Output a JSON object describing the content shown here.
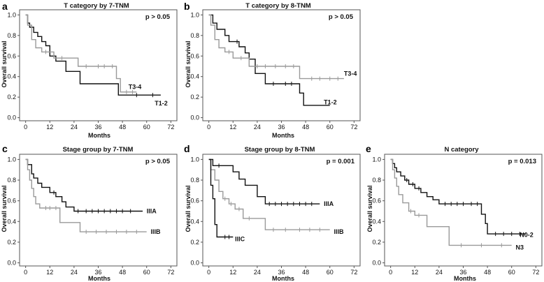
{
  "colors": {
    "black_series": "#111111",
    "gray_series": "#9a9a9a",
    "frame": "#555555"
  },
  "chart_data": [
    {
      "type": "line",
      "panel_label": "a",
      "title": "T category by 7-TNM",
      "p_value": "p > 0.05",
      "xlabel": "Months",
      "ylabel": "Overall survival",
      "xlim": [
        -3,
        75
      ],
      "ylim": [
        -0.03,
        1.05
      ],
      "xticks": [
        0,
        12,
        24,
        36,
        48,
        60,
        72
      ],
      "xtick_labels": [
        "0",
        "12",
        "24",
        "36",
        "48",
        "60",
        "72"
      ],
      "yticks": [
        0.0,
        0.2,
        0.4,
        0.6,
        0.8,
        1.0
      ],
      "ytick_labels": [
        "0.0",
        "0.2",
        "0.4",
        "0.6",
        "0.8",
        "1.0"
      ],
      "series": [
        {
          "name": "T1-2",
          "color": "#111111",
          "x": [
            0,
            1,
            1,
            2,
            2,
            4,
            4,
            6,
            6,
            8,
            8,
            10,
            10,
            12,
            12,
            15,
            15,
            20,
            20,
            27,
            27,
            46,
            46,
            67
          ],
          "y": [
            1,
            1,
            0.92,
            0.92,
            0.88,
            0.88,
            0.83,
            0.83,
            0.79,
            0.79,
            0.74,
            0.74,
            0.7,
            0.7,
            0.6,
            0.6,
            0.55,
            0.55,
            0.45,
            0.45,
            0.33,
            0.33,
            0.22,
            0.22
          ],
          "censor_x": [
            14,
            55,
            63
          ],
          "label_x": 64,
          "label_y": 0.14
        },
        {
          "name": "T3-4",
          "color": "#9a9a9a",
          "x": [
            0,
            1,
            1,
            3,
            3,
            5,
            5,
            8,
            8,
            14,
            14,
            26,
            26,
            45,
            45,
            47,
            47,
            55
          ],
          "y": [
            1,
            1,
            0.9,
            0.9,
            0.76,
            0.76,
            0.68,
            0.68,
            0.64,
            0.64,
            0.58,
            0.58,
            0.5,
            0.5,
            0.38,
            0.38,
            0.25,
            0.25
          ],
          "censor_x": [
            10,
            18,
            30,
            36,
            39,
            43,
            50,
            53
          ],
          "label_x": 51,
          "label_y": 0.3
        }
      ]
    },
    {
      "type": "line",
      "panel_label": "b",
      "title": "T category by 8-TNM",
      "p_value": "p > 0.05",
      "xlabel": "Months",
      "ylabel": "Overall survival",
      "xlim": [
        -3,
        75
      ],
      "ylim": [
        -0.03,
        1.05
      ],
      "xticks": [
        0,
        12,
        24,
        36,
        48,
        60,
        72
      ],
      "xtick_labels": [
        "0",
        "12",
        "24",
        "36",
        "48",
        "60",
        "72"
      ],
      "yticks": [
        0.0,
        0.2,
        0.4,
        0.6,
        0.8,
        1.0
      ],
      "ytick_labels": [
        "0.0",
        "0.2",
        "0.4",
        "0.6",
        "0.8",
        "1.0"
      ],
      "series": [
        {
          "name": "T1-2",
          "color": "#111111",
          "x": [
            0,
            2,
            2,
            4,
            4,
            8,
            8,
            10,
            10,
            15,
            15,
            18,
            18,
            20,
            20,
            23,
            23,
            28,
            28,
            45,
            45,
            47,
            47,
            60
          ],
          "y": [
            1,
            1,
            0.92,
            0.92,
            0.86,
            0.86,
            0.8,
            0.8,
            0.74,
            0.74,
            0.69,
            0.69,
            0.63,
            0.63,
            0.57,
            0.57,
            0.43,
            0.43,
            0.33,
            0.33,
            0.24,
            0.24,
            0.12,
            0.12
          ],
          "censor_x": [
            14,
            32,
            38,
            41
          ],
          "label_x": 57,
          "label_y": 0.15
        },
        {
          "name": "T3-4",
          "color": "#9a9a9a",
          "x": [
            0,
            1,
            1,
            3,
            3,
            5,
            5,
            8,
            8,
            12,
            12,
            20,
            20,
            45,
            45,
            67
          ],
          "y": [
            1,
            1,
            0.9,
            0.9,
            0.76,
            0.76,
            0.68,
            0.68,
            0.64,
            0.64,
            0.58,
            0.58,
            0.5,
            0.5,
            0.38,
            0.38
          ],
          "censor_x": [
            10,
            16,
            24,
            28,
            33,
            38,
            42,
            51,
            55,
            60,
            64
          ],
          "label_x": 67,
          "label_y": 0.43
        }
      ]
    },
    {
      "type": "line",
      "panel_label": "c",
      "title": "Stage group by 7-TNM",
      "p_value": "p > 0.05",
      "xlabel": "Months",
      "ylabel": "Overall survival",
      "xlim": [
        -3,
        75
      ],
      "ylim": [
        -0.03,
        1.05
      ],
      "xticks": [
        0,
        12,
        24,
        36,
        48,
        60,
        72
      ],
      "xtick_labels": [
        "0",
        "12",
        "24",
        "36",
        "48",
        "60",
        "72"
      ],
      "yticks": [
        0.0,
        0.2,
        0.4,
        0.6,
        0.8,
        1.0
      ],
      "ytick_labels": [
        "0.0",
        "0.2",
        "0.4",
        "0.6",
        "0.8",
        "1.0"
      ],
      "series": [
        {
          "name": "IIIA",
          "color": "#111111",
          "x": [
            0,
            1,
            1,
            3,
            3,
            4,
            4,
            6,
            6,
            8,
            8,
            12,
            12,
            15,
            15,
            18,
            18,
            20,
            20,
            24,
            24,
            58
          ],
          "y": [
            1,
            1,
            0.95,
            0.95,
            0.86,
            0.86,
            0.82,
            0.82,
            0.77,
            0.77,
            0.73,
            0.73,
            0.68,
            0.68,
            0.64,
            0.64,
            0.59,
            0.59,
            0.54,
            0.54,
            0.5,
            0.5
          ],
          "censor_x": [
            14,
            26,
            30,
            33,
            36,
            39,
            42,
            45,
            48,
            52
          ],
          "label_x": 60,
          "label_y": 0.5
        },
        {
          "name": "IIIB",
          "color": "#9a9a9a",
          "x": [
            0,
            1,
            1,
            2,
            2,
            3,
            3,
            4,
            4,
            5,
            5,
            7,
            7,
            9,
            9,
            17,
            17,
            27,
            27,
            60
          ],
          "y": [
            1,
            1,
            0.9,
            0.9,
            0.8,
            0.8,
            0.72,
            0.72,
            0.64,
            0.64,
            0.57,
            0.57,
            0.53,
            0.53,
            0.53,
            0.53,
            0.39,
            0.39,
            0.3,
            0.3
          ],
          "censor_x": [
            10,
            12,
            15,
            30,
            35,
            40,
            45,
            50,
            55
          ],
          "label_x": 62,
          "label_y": 0.3
        }
      ]
    },
    {
      "type": "line",
      "panel_label": "d",
      "title": "Stage group by 8-TNM",
      "p_value": "p = 0.001",
      "xlabel": "Months",
      "ylabel": "Overall survival",
      "xlim": [
        -3,
        75
      ],
      "ylim": [
        -0.03,
        1.05
      ],
      "xticks": [
        0,
        12,
        24,
        36,
        48,
        60,
        72
      ],
      "xtick_labels": [
        "0",
        "12",
        "24",
        "36",
        "48",
        "60",
        "72"
      ],
      "yticks": [
        0.0,
        0.2,
        0.4,
        0.6,
        0.8,
        1.0
      ],
      "ytick_labels": [
        "0.0",
        "0.2",
        "0.4",
        "0.6",
        "0.8",
        "1.0"
      ],
      "series": [
        {
          "name": "IIIA",
          "color": "#111111",
          "x": [
            0,
            2,
            2,
            12,
            12,
            15,
            15,
            18,
            18,
            24,
            24,
            28,
            28,
            55
          ],
          "y": [
            1,
            1,
            0.94,
            0.94,
            0.88,
            0.88,
            0.81,
            0.81,
            0.75,
            0.75,
            0.64,
            0.64,
            0.57,
            0.57
          ],
          "censor_x": [
            5,
            30,
            33,
            36,
            39,
            42,
            45,
            48,
            51
          ],
          "label_x": 57,
          "label_y": 0.57
        },
        {
          "name": "IIIB",
          "color": "#9a9a9a",
          "x": [
            0,
            1,
            1,
            3,
            3,
            5,
            5,
            7,
            7,
            10,
            10,
            13,
            13,
            17,
            17,
            28,
            28,
            60
          ],
          "y": [
            1,
            1,
            0.9,
            0.9,
            0.8,
            0.8,
            0.69,
            0.69,
            0.62,
            0.62,
            0.57,
            0.57,
            0.52,
            0.52,
            0.43,
            0.43,
            0.32,
            0.32
          ],
          "censor_x": [
            8,
            11,
            15,
            20,
            32,
            38,
            45,
            50,
            55
          ],
          "label_x": 62,
          "label_y": 0.3
        },
        {
          "name": "IIIC",
          "color": "#111111",
          "x": [
            0,
            1,
            1,
            2,
            2,
            3,
            3,
            4,
            4,
            12
          ],
          "y": [
            1,
            1,
            0.75,
            0.75,
            0.62,
            0.62,
            0.37,
            0.37,
            0.25,
            0.25
          ],
          "censor_x": [
            8,
            10
          ],
          "label_x": 13,
          "label_y": 0.23
        }
      ]
    },
    {
      "type": "line",
      "panel_label": "e",
      "title": "N category",
      "p_value": "p = 0.013",
      "xlabel": "Months",
      "ylabel": "Overall survival",
      "xlim": [
        -3,
        75
      ],
      "ylim": [
        -0.03,
        1.05
      ],
      "xticks": [
        0,
        12,
        24,
        36,
        48,
        60,
        72
      ],
      "xtick_labels": [
        "0",
        "12",
        "24",
        "36",
        "48",
        "60",
        "72"
      ],
      "yticks": [
        0.0,
        0.2,
        0.4,
        0.6,
        0.8,
        1.0
      ],
      "ytick_labels": [
        "0.0",
        "0.2",
        "0.4",
        "0.6",
        "0.8",
        "1.0"
      ],
      "series": [
        {
          "name": "N0-2",
          "color": "#111111",
          "x": [
            0,
            1,
            1,
            2,
            2,
            3,
            3,
            5,
            5,
            7,
            7,
            9,
            9,
            12,
            12,
            15,
            15,
            18,
            18,
            21,
            21,
            24,
            24,
            45,
            45,
            47,
            47,
            48,
            48,
            67
          ],
          "y": [
            1,
            1,
            0.96,
            0.96,
            0.92,
            0.92,
            0.88,
            0.88,
            0.84,
            0.84,
            0.8,
            0.8,
            0.76,
            0.76,
            0.72,
            0.72,
            0.68,
            0.68,
            0.64,
            0.64,
            0.61,
            0.61,
            0.57,
            0.57,
            0.47,
            0.47,
            0.38,
            0.38,
            0.28,
            0.28
          ],
          "censor_x": [
            8,
            11,
            14,
            27,
            30,
            33,
            36,
            40,
            43,
            52,
            56,
            60,
            64
          ],
          "label_x": 64,
          "label_y": 0.27
        },
        {
          "name": "N3",
          "color": "#9a9a9a",
          "x": [
            0,
            1,
            1,
            2,
            2,
            3,
            3,
            4,
            4,
            6,
            6,
            9,
            9,
            12,
            12,
            18,
            18,
            29,
            29,
            60
          ],
          "y": [
            1,
            1,
            0.9,
            0.9,
            0.82,
            0.82,
            0.74,
            0.74,
            0.66,
            0.66,
            0.58,
            0.58,
            0.5,
            0.5,
            0.46,
            0.46,
            0.35,
            0.35,
            0.17,
            0.17
          ],
          "censor_x": [
            10,
            14,
            35,
            45,
            55
          ],
          "label_x": 62,
          "label_y": 0.15
        }
      ]
    }
  ]
}
